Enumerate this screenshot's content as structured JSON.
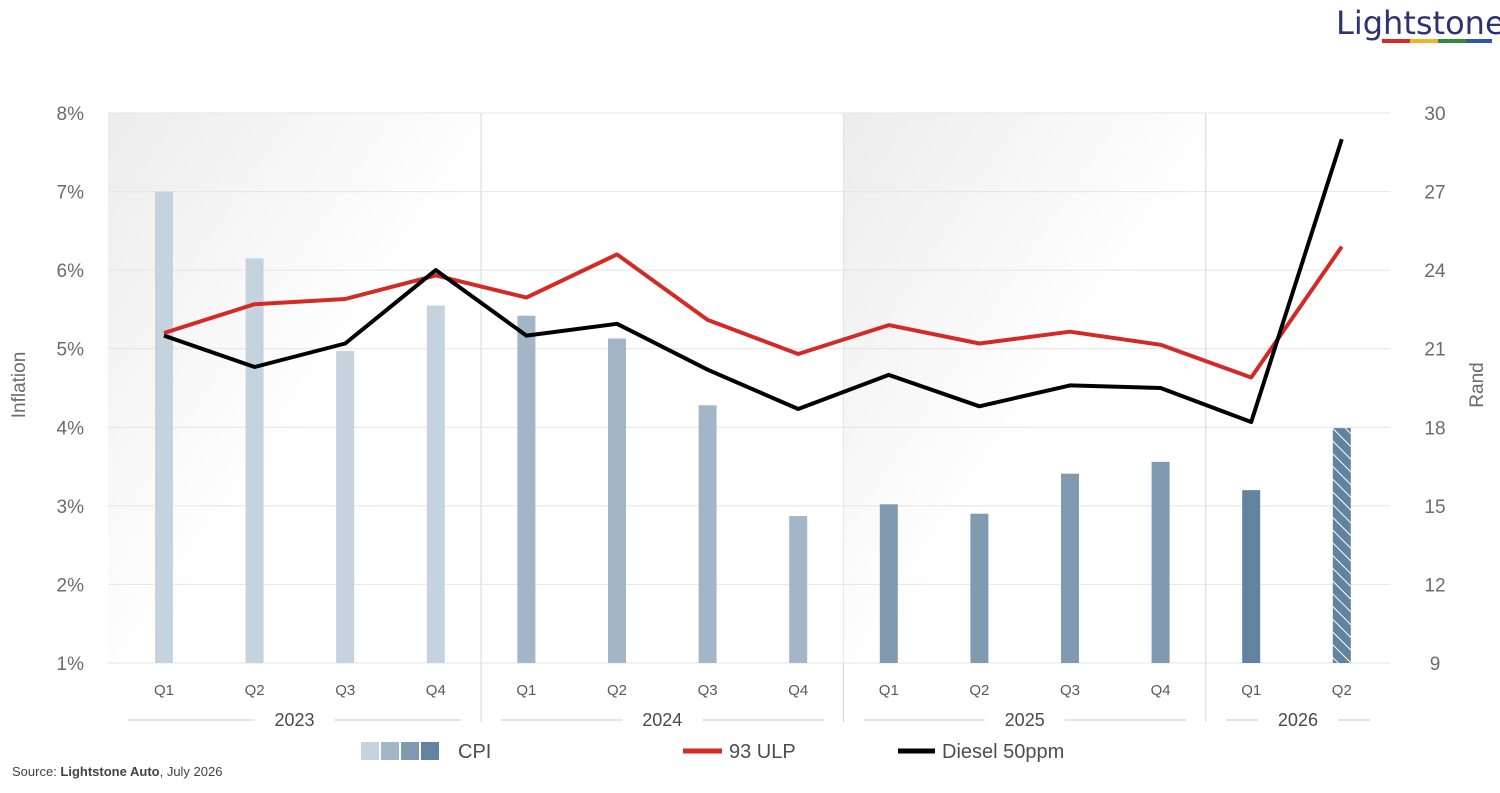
{
  "brand": {
    "logo_text": "Lightstone",
    "colors": [
      "#d52b27",
      "#f0b323",
      "#2e8b3a",
      "#2b5aa8"
    ]
  },
  "source": {
    "prefix": "Source: ",
    "org": "Lightstone Auto",
    "suffix": ", July 2026"
  },
  "chart_data": {
    "type": "bar",
    "ylabel": "Inflation",
    "y2label": "Rand",
    "ylim": [
      1,
      8
    ],
    "y2lim": [
      9,
      30
    ],
    "yticks": [
      "8%",
      "7%",
      "6%",
      "5%",
      "4%",
      "3%",
      "2%",
      "1%"
    ],
    "y2ticks": [
      "30",
      "27",
      "24",
      "21",
      "18",
      "15",
      "12",
      "9"
    ],
    "categories": [
      "Q1",
      "Q2",
      "Q3",
      "Q4",
      "Q1",
      "Q2",
      "Q3",
      "Q4",
      "Q1",
      "Q2",
      "Q3",
      "Q4",
      "Q1",
      "Q2"
    ],
    "years": [
      {
        "label": "2023",
        "quarters": 4
      },
      {
        "label": "2024",
        "quarters": 4
      },
      {
        "label": "2025",
        "quarters": 4
      },
      {
        "label": "2026",
        "quarters": 2
      }
    ],
    "grid": true,
    "series": [
      {
        "name": "CPI",
        "type": "bar",
        "axis": "left",
        "values": [
          7.0,
          6.15,
          4.97,
          5.55,
          5.42,
          5.13,
          4.28,
          2.87,
          3.02,
          2.9,
          3.41,
          3.56,
          3.2,
          3.99
        ],
        "colors_by_year": [
          "#c5d3df",
          "#a3b6c8",
          "#809ab2",
          "#62839f"
        ],
        "last_bar_hatched": true
      },
      {
        "name": "93 ULP",
        "type": "line",
        "axis": "right",
        "color": "#d42a26",
        "values": [
          21.6,
          22.7,
          22.9,
          23.8,
          22.95,
          24.6,
          22.1,
          20.8,
          21.9,
          21.2,
          21.65,
          21.15,
          19.9,
          24.9
        ]
      },
      {
        "name": "Diesel 50ppm",
        "type": "line",
        "axis": "right",
        "color": "#000000",
        "values": [
          21.5,
          20.3,
          21.2,
          24.0,
          21.5,
          21.95,
          20.2,
          18.7,
          20.0,
          18.8,
          19.6,
          19.5,
          18.2,
          29.0
        ]
      }
    ],
    "legend_position": "bottom-center"
  }
}
